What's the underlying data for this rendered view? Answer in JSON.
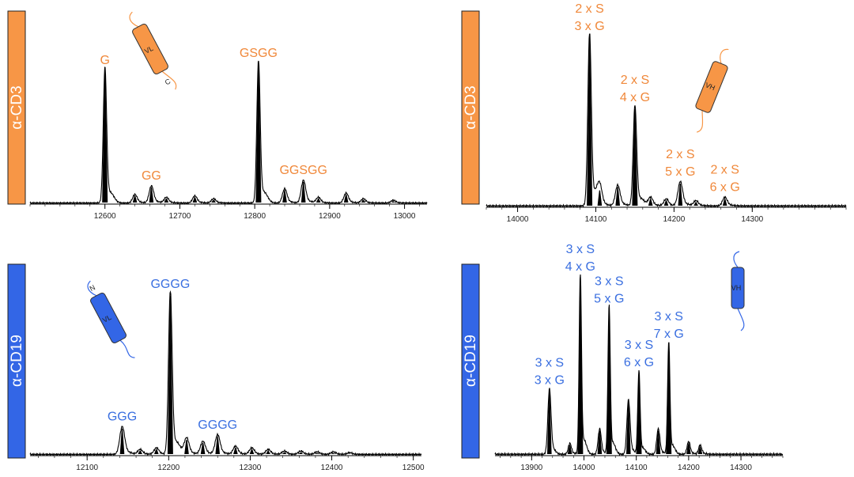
{
  "colors": {
    "orange": "#F79646",
    "blue": "#3366E6",
    "orange_text": "#F0883A",
    "blue_text": "#3A6FE0",
    "trace": "#000000"
  },
  "rows": [
    {
      "label": "α-CD3"
    },
    {
      "label": "α-CD19"
    }
  ],
  "chart_data": [
    {
      "type": "line",
      "panel": "top-left",
      "row_label": "α-CD3",
      "xlim": [
        12500,
        13030
      ],
      "ticks": [
        12600,
        12700,
        12800,
        12900,
        13000
      ],
      "tick_labels": [
        "12600",
        "12700",
        "12800",
        "12900",
        "13000"
      ],
      "ymax": 100,
      "peaks": [
        {
          "x": 12600,
          "y": 95,
          "label": [
            "G"
          ]
        },
        {
          "x": 12640,
          "y": 6
        },
        {
          "x": 12662,
          "y": 12,
          "label": [
            "GG"
          ]
        },
        {
          "x": 12682,
          "y": 4
        },
        {
          "x": 12720,
          "y": 5
        },
        {
          "x": 12745,
          "y": 3
        },
        {
          "x": 12805,
          "y": 100,
          "label": [
            "GSGG"
          ]
        },
        {
          "x": 12840,
          "y": 10
        },
        {
          "x": 12865,
          "y": 16,
          "label": [
            "GGSGG"
          ]
        },
        {
          "x": 12885,
          "y": 4
        },
        {
          "x": 12922,
          "y": 7
        },
        {
          "x": 12945,
          "y": 3
        },
        {
          "x": 12985,
          "y": 2
        }
      ],
      "domain": {
        "label": "VL",
        "sub": "L",
        "terminus": "C",
        "color": "orange"
      }
    },
    {
      "type": "line",
      "panel": "top-right",
      "row_label": "α-CD3",
      "xlim": [
        13960,
        14420
      ],
      "ticks": [
        14000,
        14100,
        14200,
        14300
      ],
      "tick_labels": [
        "14000",
        "14100",
        "14200",
        "14300"
      ],
      "ymax": 100,
      "peaks": [
        {
          "x": 14092,
          "y": 100,
          "label": [
            "2 x S",
            "3 x G"
          ]
        },
        {
          "x": 14105,
          "y": 10
        },
        {
          "x": 14128,
          "y": 12
        },
        {
          "x": 14150,
          "y": 58,
          "label": [
            "2 x S",
            "4 x G"
          ]
        },
        {
          "x": 14170,
          "y": 5
        },
        {
          "x": 14190,
          "y": 4
        },
        {
          "x": 14208,
          "y": 14,
          "label": [
            "2 x S",
            "5 x G"
          ]
        },
        {
          "x": 14228,
          "y": 3
        },
        {
          "x": 14265,
          "y": 5,
          "label": [
            "2 x S",
            "6 x G"
          ]
        }
      ],
      "domain": {
        "label": "VH",
        "sub": "H",
        "terminus": "",
        "color": "orange"
      }
    },
    {
      "type": "line",
      "panel": "bottom-left",
      "row_label": "α-CD19",
      "xlim": [
        12030,
        12510
      ],
      "ticks": [
        12100,
        12200,
        12300,
        12400,
        12500
      ],
      "tick_labels": [
        "12100",
        "12200",
        "12300",
        "12400",
        "12500"
      ],
      "ymax": 100,
      "peaks": [
        {
          "x": 12143,
          "y": 17,
          "label": [
            "GGG"
          ]
        },
        {
          "x": 12165,
          "y": 3
        },
        {
          "x": 12185,
          "y": 4
        },
        {
          "x": 12202,
          "y": 100,
          "label": [
            "GGGG"
          ]
        },
        {
          "x": 12222,
          "y": 10
        },
        {
          "x": 12242,
          "y": 8
        },
        {
          "x": 12260,
          "y": 12,
          "label": [
            "GGGG"
          ]
        },
        {
          "x": 12282,
          "y": 5
        },
        {
          "x": 12302,
          "y": 4
        },
        {
          "x": 12322,
          "y": 3
        },
        {
          "x": 12342,
          "y": 2
        },
        {
          "x": 12362,
          "y": 2
        },
        {
          "x": 12382,
          "y": 1.5
        },
        {
          "x": 12402,
          "y": 1.5
        },
        {
          "x": 12422,
          "y": 1
        }
      ],
      "domain": {
        "label": "VL",
        "sub": "L",
        "terminus": "N",
        "color": "blue"
      }
    },
    {
      "type": "line",
      "panel": "bottom-right",
      "row_label": "α-CD19",
      "xlim": [
        13830,
        14380
      ],
      "ticks": [
        13900,
        14000,
        14100,
        14200,
        14300
      ],
      "tick_labels": [
        "13900",
        "14000",
        "14100",
        "14200",
        "14300"
      ],
      "ymax": 100,
      "peaks": [
        {
          "x": 13934,
          "y": 36,
          "label": [
            "3 x S",
            "3 x G"
          ]
        },
        {
          "x": 13973,
          "y": 6
        },
        {
          "x": 13993,
          "y": 100,
          "label": [
            "3 x S",
            "4 x G"
          ]
        },
        {
          "x": 14030,
          "y": 14
        },
        {
          "x": 14048,
          "y": 82,
          "label": [
            "3 x S",
            "5 x G"
          ]
        },
        {
          "x": 14085,
          "y": 30
        },
        {
          "x": 14105,
          "y": 46,
          "label": [
            "3 x S",
            "6 x G"
          ]
        },
        {
          "x": 14142,
          "y": 14
        },
        {
          "x": 14162,
          "y": 62,
          "label": [
            "3 x S",
            "7 x G"
          ]
        },
        {
          "x": 14200,
          "y": 7
        },
        {
          "x": 14222,
          "y": 5
        }
      ],
      "domain": {
        "label": "VH",
        "sub": "H",
        "terminus": "",
        "color": "blue"
      }
    }
  ]
}
